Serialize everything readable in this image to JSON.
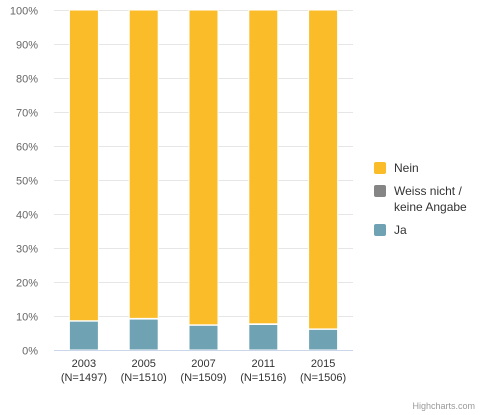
{
  "chart_data": {
    "type": "bar",
    "stacking": "percent",
    "categories": [
      [
        "2003",
        "(N=1497)"
      ],
      [
        "2005",
        "(N=1510)"
      ],
      [
        "2007",
        "(N=1509)"
      ],
      [
        "2011",
        "(N=1516)"
      ],
      [
        "2015",
        "(N=1506)"
      ]
    ],
    "series": [
      {
        "name": "Nein",
        "color": "#fbbc2a",
        "values": [
          91.4,
          90.7,
          92.6,
          92.3,
          93.8
        ]
      },
      {
        "name": "Weiss nicht / keine Angabe",
        "name_lines": [
          "Weiss nicht /",
          "keine Angabe"
        ],
        "color": "#858585",
        "values": [
          0.1,
          0.2,
          0.1,
          0.2,
          0.1
        ]
      },
      {
        "name": "Ja",
        "color": "#6fa3b4",
        "values": [
          8.5,
          9.1,
          7.3,
          7.5,
          6.1
        ]
      }
    ],
    "yticks": [
      "0%",
      "10%",
      "20%",
      "30%",
      "40%",
      "50%",
      "60%",
      "70%",
      "80%",
      "90%",
      "100%"
    ],
    "ylim": [
      0,
      100
    ],
    "grid": true,
    "legend_position": "right"
  },
  "credit": "Highcharts.com"
}
